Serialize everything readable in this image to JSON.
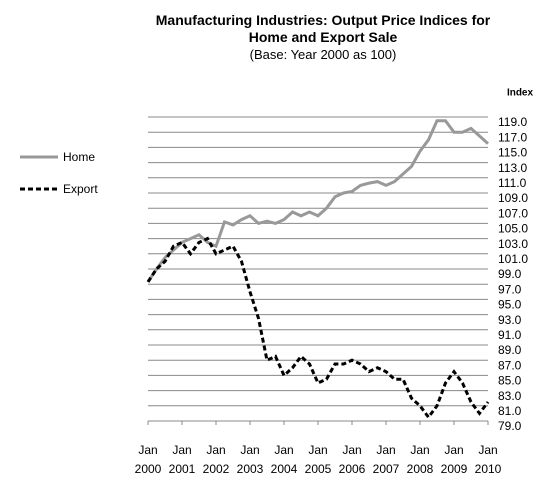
{
  "chart_data": {
    "type": "line",
    "title": "Manufacturing Industries: Output Price Indices for Home and Export Sale",
    "subtitle": "(Base: Year 2000 as 100)",
    "y_label": "Index",
    "x": [
      2000,
      2000.25,
      2000.5,
      2000.75,
      2001,
      2001.25,
      2001.5,
      2001.75,
      2002,
      2002.25,
      2002.5,
      2002.75,
      2003,
      2003.25,
      2003.5,
      2003.75,
      2004,
      2004.25,
      2004.5,
      2004.75,
      2005,
      2005.25,
      2005.5,
      2005.75,
      2006,
      2006.25,
      2006.5,
      2006.75,
      2007,
      2007.25,
      2007.5,
      2007.75,
      2008,
      2008.25,
      2008.5,
      2008.75,
      2009,
      2009.25,
      2009.5,
      2009.75,
      2010
    ],
    "series": [
      {
        "name": "Home",
        "color": "#999999",
        "dashed": false,
        "values": [
          97.3,
          99,
          100.5,
          101.5,
          102.5,
          103,
          103.5,
          102.5,
          102,
          105.2,
          104.8,
          105.5,
          106,
          105,
          105.3,
          105,
          105.5,
          106.5,
          106,
          106.5,
          106,
          107,
          108.5,
          109,
          109.2,
          110,
          110.3,
          110.5,
          110,
          110.5,
          111.5,
          112.5,
          114.5,
          116,
          118.5,
          118.5,
          117,
          117,
          117.5,
          116.5,
          115.5
        ]
      },
      {
        "name": "Export",
        "color": "#000000",
        "dashed": true,
        "values": [
          97.3,
          99,
          100,
          102,
          102.5,
          101,
          102.5,
          103,
          101,
          101.5,
          102,
          100,
          96,
          92.5,
          87,
          87.5,
          85,
          86,
          87.5,
          86.5,
          84,
          84.5,
          86.5,
          86.5,
          87,
          86.5,
          85.5,
          86,
          85.5,
          84.5,
          84.5,
          82,
          81,
          79.5,
          81,
          84,
          85.5,
          84,
          81.5,
          80,
          81.5
        ]
      }
    ],
    "xlim": [
      2000,
      2010
    ],
    "xticks": [
      {
        "value": 2000,
        "label": "Jan 2000"
      },
      {
        "value": 2001,
        "label": "Jan 2001"
      },
      {
        "value": 2002,
        "label": "Jan 2002"
      },
      {
        "value": 2003,
        "label": "Jan 2003"
      },
      {
        "value": 2004,
        "label": "Jan 2004"
      },
      {
        "value": 2005,
        "label": "Jan 2005"
      },
      {
        "value": 2006,
        "label": "Jan 2006"
      },
      {
        "value": 2007,
        "label": "Jan 2007"
      },
      {
        "value": 2008,
        "label": "Jan 2008"
      },
      {
        "value": 2009,
        "label": "Jan 2009"
      },
      {
        "value": 2010,
        "label": "Jan 2010"
      }
    ],
    "ylim": [
      79,
      119
    ],
    "yticks": [
      {
        "value": 79,
        "label": "79.0"
      },
      {
        "value": 81,
        "label": "81.0"
      },
      {
        "value": 83,
        "label": "83.0"
      },
      {
        "value": 85,
        "label": "85.0"
      },
      {
        "value": 87,
        "label": "87.0"
      },
      {
        "value": 89,
        "label": "89.0"
      },
      {
        "value": 91,
        "label": "91.0"
      },
      {
        "value": 93,
        "label": "93.0"
      },
      {
        "value": 95,
        "label": "95.0"
      },
      {
        "value": 97,
        "label": "97.0"
      },
      {
        "value": 99,
        "label": "99.0"
      },
      {
        "value": 101,
        "label": "101.0"
      },
      {
        "value": 103,
        "label": "103.0"
      },
      {
        "value": 105,
        "label": "105.0"
      },
      {
        "value": 107,
        "label": "107.0"
      },
      {
        "value": 109,
        "label": "109.0"
      },
      {
        "value": 111,
        "label": "111.0"
      },
      {
        "value": 113,
        "label": "113.0"
      },
      {
        "value": 115,
        "label": "115.0"
      },
      {
        "value": 117,
        "label": "117.0"
      },
      {
        "value": 119,
        "label": "119.0"
      }
    ],
    "grid": true,
    "legend": "left"
  }
}
